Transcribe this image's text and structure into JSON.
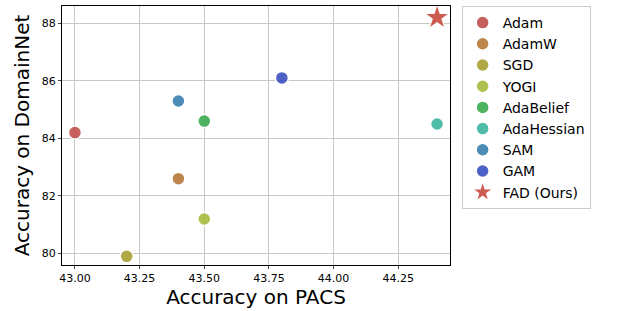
{
  "chart_data": {
    "type": "scatter",
    "x_label": "Accuracy on PACS",
    "y_label": "Accuracy on DomainNet",
    "series": [
      {
        "name": "Adam",
        "color": "#c0504d",
        "marker": "circle",
        "x": [
          43.0
        ],
        "values": [
          84.2
        ]
      },
      {
        "name": "AdamW",
        "color": "#b57a3a",
        "marker": "circle",
        "x": [
          43.4
        ],
        "values": [
          82.6
        ]
      },
      {
        "name": "SGD",
        "color": "#a89f30",
        "marker": "circle",
        "x": [
          43.2
        ],
        "values": [
          79.9
        ]
      },
      {
        "name": "YOGI",
        "color": "#a6bd3c",
        "marker": "circle",
        "x": [
          43.5
        ],
        "values": [
          81.2
        ]
      },
      {
        "name": "AdaBelief",
        "color": "#3aab4f",
        "marker": "circle",
        "x": [
          43.5
        ],
        "values": [
          84.6
        ]
      },
      {
        "name": "AdaHessian",
        "color": "#3bb59e",
        "marker": "circle",
        "x": [
          44.4
        ],
        "values": [
          84.5
        ]
      },
      {
        "name": "SAM",
        "color": "#3a7fb0",
        "marker": "circle",
        "x": [
          43.4
        ],
        "values": [
          85.3
        ]
      },
      {
        "name": "GAM",
        "color": "#3a4fc0",
        "marker": "circle",
        "x": [
          43.8
        ],
        "values": [
          86.1
        ]
      },
      {
        "name": "FAD (Ours)",
        "color": "#c94a3f",
        "marker": "star",
        "x": [
          44.4
        ],
        "values": [
          88.2
        ]
      }
    ],
    "xlim": [
      42.95,
      44.45
    ],
    "xticks": [
      {
        "value": 43.0,
        "label": "43.00"
      },
      {
        "value": 43.25,
        "label": "43.25"
      },
      {
        "value": 43.5,
        "label": "43.50"
      },
      {
        "value": 43.75,
        "label": "43.75"
      },
      {
        "value": 44.0,
        "label": "44.00"
      },
      {
        "value": 44.25,
        "label": "44.25"
      }
    ],
    "ylim": [
      79.6,
      88.6
    ],
    "yticks": [
      80,
      82,
      84,
      86,
      88
    ],
    "grid": true,
    "legend": "right"
  }
}
